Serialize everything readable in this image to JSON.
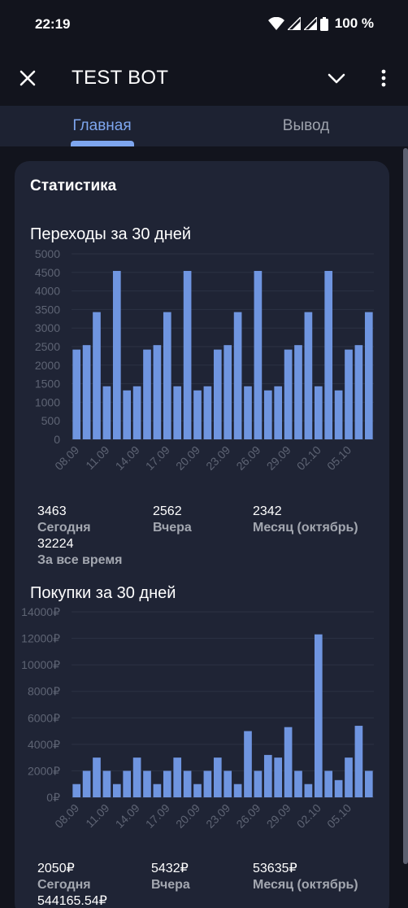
{
  "status_bar": {
    "time": "22:19",
    "battery": "100 %"
  },
  "header": {
    "title": "TEST BOT"
  },
  "tabs": [
    {
      "label": "Главная"
    },
    {
      "label": "Вывод"
    }
  ],
  "card": {
    "title": "Статистика"
  },
  "colors": {
    "bar": "#6f95e0",
    "accent": "#7ea6ef",
    "card": "#1f2435",
    "background": "#12141d"
  },
  "chart_data": [
    {
      "type": "bar",
      "title": "Переходы за 30 дней",
      "ylim": [
        0,
        5000
      ],
      "yticks": [
        "0",
        "500",
        "1000",
        "1500",
        "2000",
        "2500",
        "3000",
        "3500",
        "4000",
        "4500",
        "5000"
      ],
      "xticks": [
        "08.09",
        "11.09",
        "14.09",
        "17.09",
        "20.09",
        "23.09",
        "26.09",
        "29.09",
        "02.10",
        "05.10"
      ],
      "values": [
        2420,
        2540,
        3430,
        1430,
        4540,
        1320,
        1430,
        2420,
        2540,
        3430,
        1430,
        4540,
        1320,
        1430,
        2420,
        2540,
        3430,
        1430,
        4540,
        1320,
        1430,
        2420,
        2540,
        3430,
        1430,
        4540,
        1320,
        2420,
        2540,
        3430
      ],
      "grid": true,
      "legend": "none"
    },
    {
      "type": "bar",
      "title": "Покупки за 30 дней",
      "ylim": [
        0,
        14000
      ],
      "yticks": [
        "0₽",
        "2000₽",
        "4000₽",
        "6000₽",
        "8000₽",
        "10000₽",
        "12000₽",
        "14000₽"
      ],
      "xticks": [
        "08.09",
        "11.09",
        "14.09",
        "17.09",
        "20.09",
        "23.09",
        "26.09",
        "29.09",
        "02.10",
        "05.10"
      ],
      "values": [
        1000,
        2000,
        3000,
        2000,
        1000,
        2000,
        3000,
        2000,
        1000,
        2000,
        3000,
        2000,
        1000,
        2000,
        3000,
        2000,
        1000,
        5000,
        2000,
        3200,
        3000,
        5300,
        2000,
        1000,
        12300,
        2000,
        1300,
        3000,
        5400,
        2000
      ],
      "grid": true,
      "legend": "none"
    }
  ],
  "visits_stats": {
    "today_value": "3463",
    "today_label": "Сегодня",
    "yesterday_value": "2562",
    "yesterday_label": "Вчера",
    "month_value": "2342",
    "month_label": "Месяц (октябрь)",
    "total_value": "32224",
    "total_label": "За все время"
  },
  "purchase_stats": {
    "today_value": "2050₽",
    "today_label": "Сегодня",
    "yesterday_value": "5432₽",
    "yesterday_label": "Вчера",
    "month_value": "53635₽",
    "month_label": "Месяц (октябрь)",
    "total_value": "544165.54₽"
  }
}
